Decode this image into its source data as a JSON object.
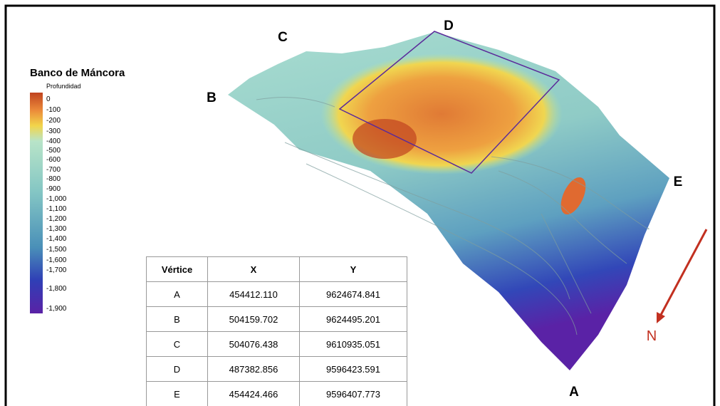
{
  "legend": {
    "title": "Banco de Máncora",
    "subtitle": "Profundidad",
    "labels": [
      "0",
      "-100",
      "-200",
      "-300",
      "-400",
      "-500",
      "-600",
      "-700",
      "-800",
      "-900",
      "-1,000",
      "-1,100",
      "-1,200",
      "-1,300",
      "-1,400",
      "-1,500",
      "-1,600",
      "-1,700",
      "-1,800",
      "-1,900"
    ]
  },
  "vertex_labels": [
    "A",
    "B",
    "C",
    "D",
    "E"
  ],
  "table": {
    "header": [
      "Vértice",
      "X",
      "Y"
    ],
    "rows": [
      [
        "A",
        "454412.110",
        "9624674.841"
      ],
      [
        "B",
        "504159.702",
        "9624495.201"
      ],
      [
        "C",
        "504076.438",
        "9610935.051"
      ],
      [
        "D",
        "487382.856",
        "9596423.591"
      ],
      [
        "E",
        "454424.466",
        "9596407.773"
      ]
    ]
  },
  "north": "N"
}
